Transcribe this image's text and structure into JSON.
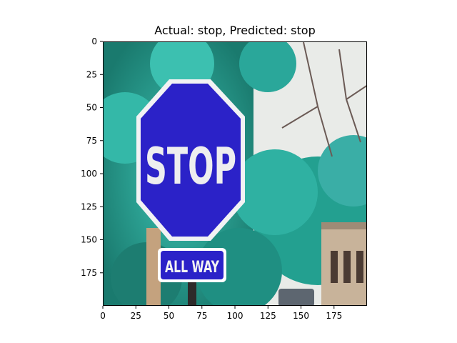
{
  "figure": {
    "title": "Actual: stop, Predicted: stop",
    "image": {
      "sign_text": "STOP",
      "plate_text": "ALL WAY",
      "sign_color": "#2b22c8",
      "foliage_color": "#2aa79a",
      "sky_color": "#e9ebe8"
    },
    "x_ticks": [
      "0",
      "25",
      "50",
      "75",
      "100",
      "125",
      "150",
      "175"
    ],
    "y_ticks": [
      "0",
      "25",
      "50",
      "75",
      "100",
      "125",
      "150",
      "175"
    ],
    "x_range": [
      0,
      200
    ],
    "y_range": [
      0,
      200
    ]
  }
}
